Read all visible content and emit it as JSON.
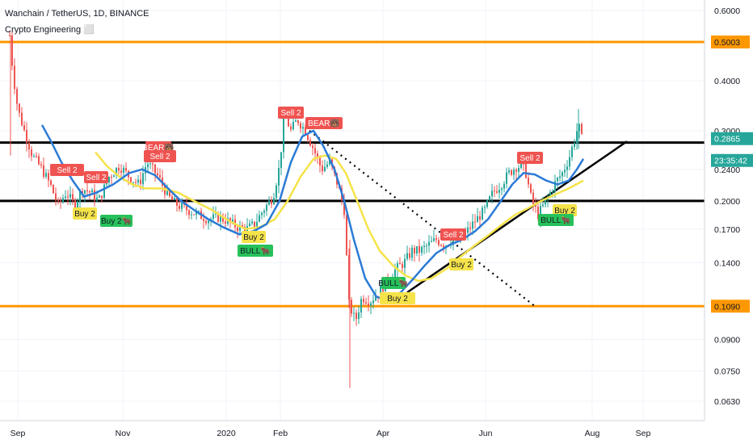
{
  "header": {
    "title": "Wanchain / TetherUS, 1D, BINANCE",
    "indicator": "Crypto Engineering ⬜"
  },
  "price_axis": {
    "ticks": [
      "0.6000",
      "0.5000",
      "0.4000",
      "0.3000",
      "0.2400",
      "0.2000",
      "0.1700",
      "0.1400",
      "0.1090",
      "0.0900",
      "0.0750",
      "0.0630"
    ],
    "current_price": "0.2865",
    "countdown": "23:35:42"
  },
  "time_axis": {
    "ticks": [
      "Sep",
      "Nov",
      "2020",
      "Feb",
      "Apr",
      "Jun",
      "Aug",
      "Sep"
    ]
  },
  "levels": [
    {
      "price": 0.5003,
      "label": "0.5003",
      "color": "#ff9800",
      "style": "orange"
    },
    {
      "price": 0.109,
      "label": "0.1090",
      "color": "#ff9800",
      "style": "orange"
    },
    {
      "price": 0.28,
      "label": "",
      "color": "#000000",
      "style": "black"
    },
    {
      "price": 0.2,
      "label": "",
      "color": "#000000",
      "style": "black"
    }
  ],
  "signals": [
    {
      "text": "Sell 2",
      "type": "sell"
    },
    {
      "text": "Sell 2",
      "type": "sell"
    },
    {
      "text": "BEAR🐻",
      "type": "sell"
    },
    {
      "text": "Sell 2",
      "type": "sell"
    },
    {
      "text": "Sell 2",
      "type": "sell"
    },
    {
      "text": "BEAR🐻",
      "type": "sell"
    },
    {
      "text": "Sell 2",
      "type": "sell"
    },
    {
      "text": "Sell 2",
      "type": "sell"
    },
    {
      "text": "Buy 2",
      "type": "buy"
    },
    {
      "text": "Buy 2🐂",
      "type": "bull"
    },
    {
      "text": "Buy 2",
      "type": "buy"
    },
    {
      "text": "BULL🐂",
      "type": "bull"
    },
    {
      "text": "Buy 2",
      "type": "buy"
    },
    {
      "text": "BULL🐂",
      "type": "bull"
    },
    {
      "text": "Buy 2",
      "type": "buy"
    },
    {
      "text": "Buy 2",
      "type": "buy"
    },
    {
      "text": "BULL🐂",
      "type": "bull"
    }
  ],
  "colors": {
    "up": "#26a69a",
    "down": "#ef5350",
    "ma_fast": "#2b7bd6",
    "ma_slow": "#f5e34a",
    "sell_bg": "#ef5350",
    "buy_bg": "#f5e34a",
    "bull_bg": "#26c15a",
    "current_bg": "#26a69a"
  },
  "chart_data": {
    "type": "candlestick",
    "title": "Wanchain / TetherUS, 1D, BINANCE",
    "y_scale": "log",
    "ylim": [
      0.058,
      0.64
    ],
    "x_ticks": [
      "Sep",
      "Nov",
      "2020",
      "Feb",
      "Apr",
      "Jun",
      "Aug",
      "Sep"
    ],
    "close_approx": [
      [
        "Sep",
        0.34
      ],
      [
        "Oct",
        0.22
      ],
      [
        "Nov",
        0.21
      ],
      [
        "Dec",
        0.19
      ],
      [
        "2020",
        0.19
      ],
      [
        "Feb",
        0.29
      ],
      [
        "Mar",
        0.13
      ],
      [
        "Apr",
        0.13
      ],
      [
        "May",
        0.16
      ],
      [
        "Jun",
        0.21
      ],
      [
        "Jul",
        0.2865
      ]
    ],
    "horizontal_levels": [
      0.5003,
      0.28,
      0.2,
      0.109
    ],
    "last_price": 0.2865
  }
}
